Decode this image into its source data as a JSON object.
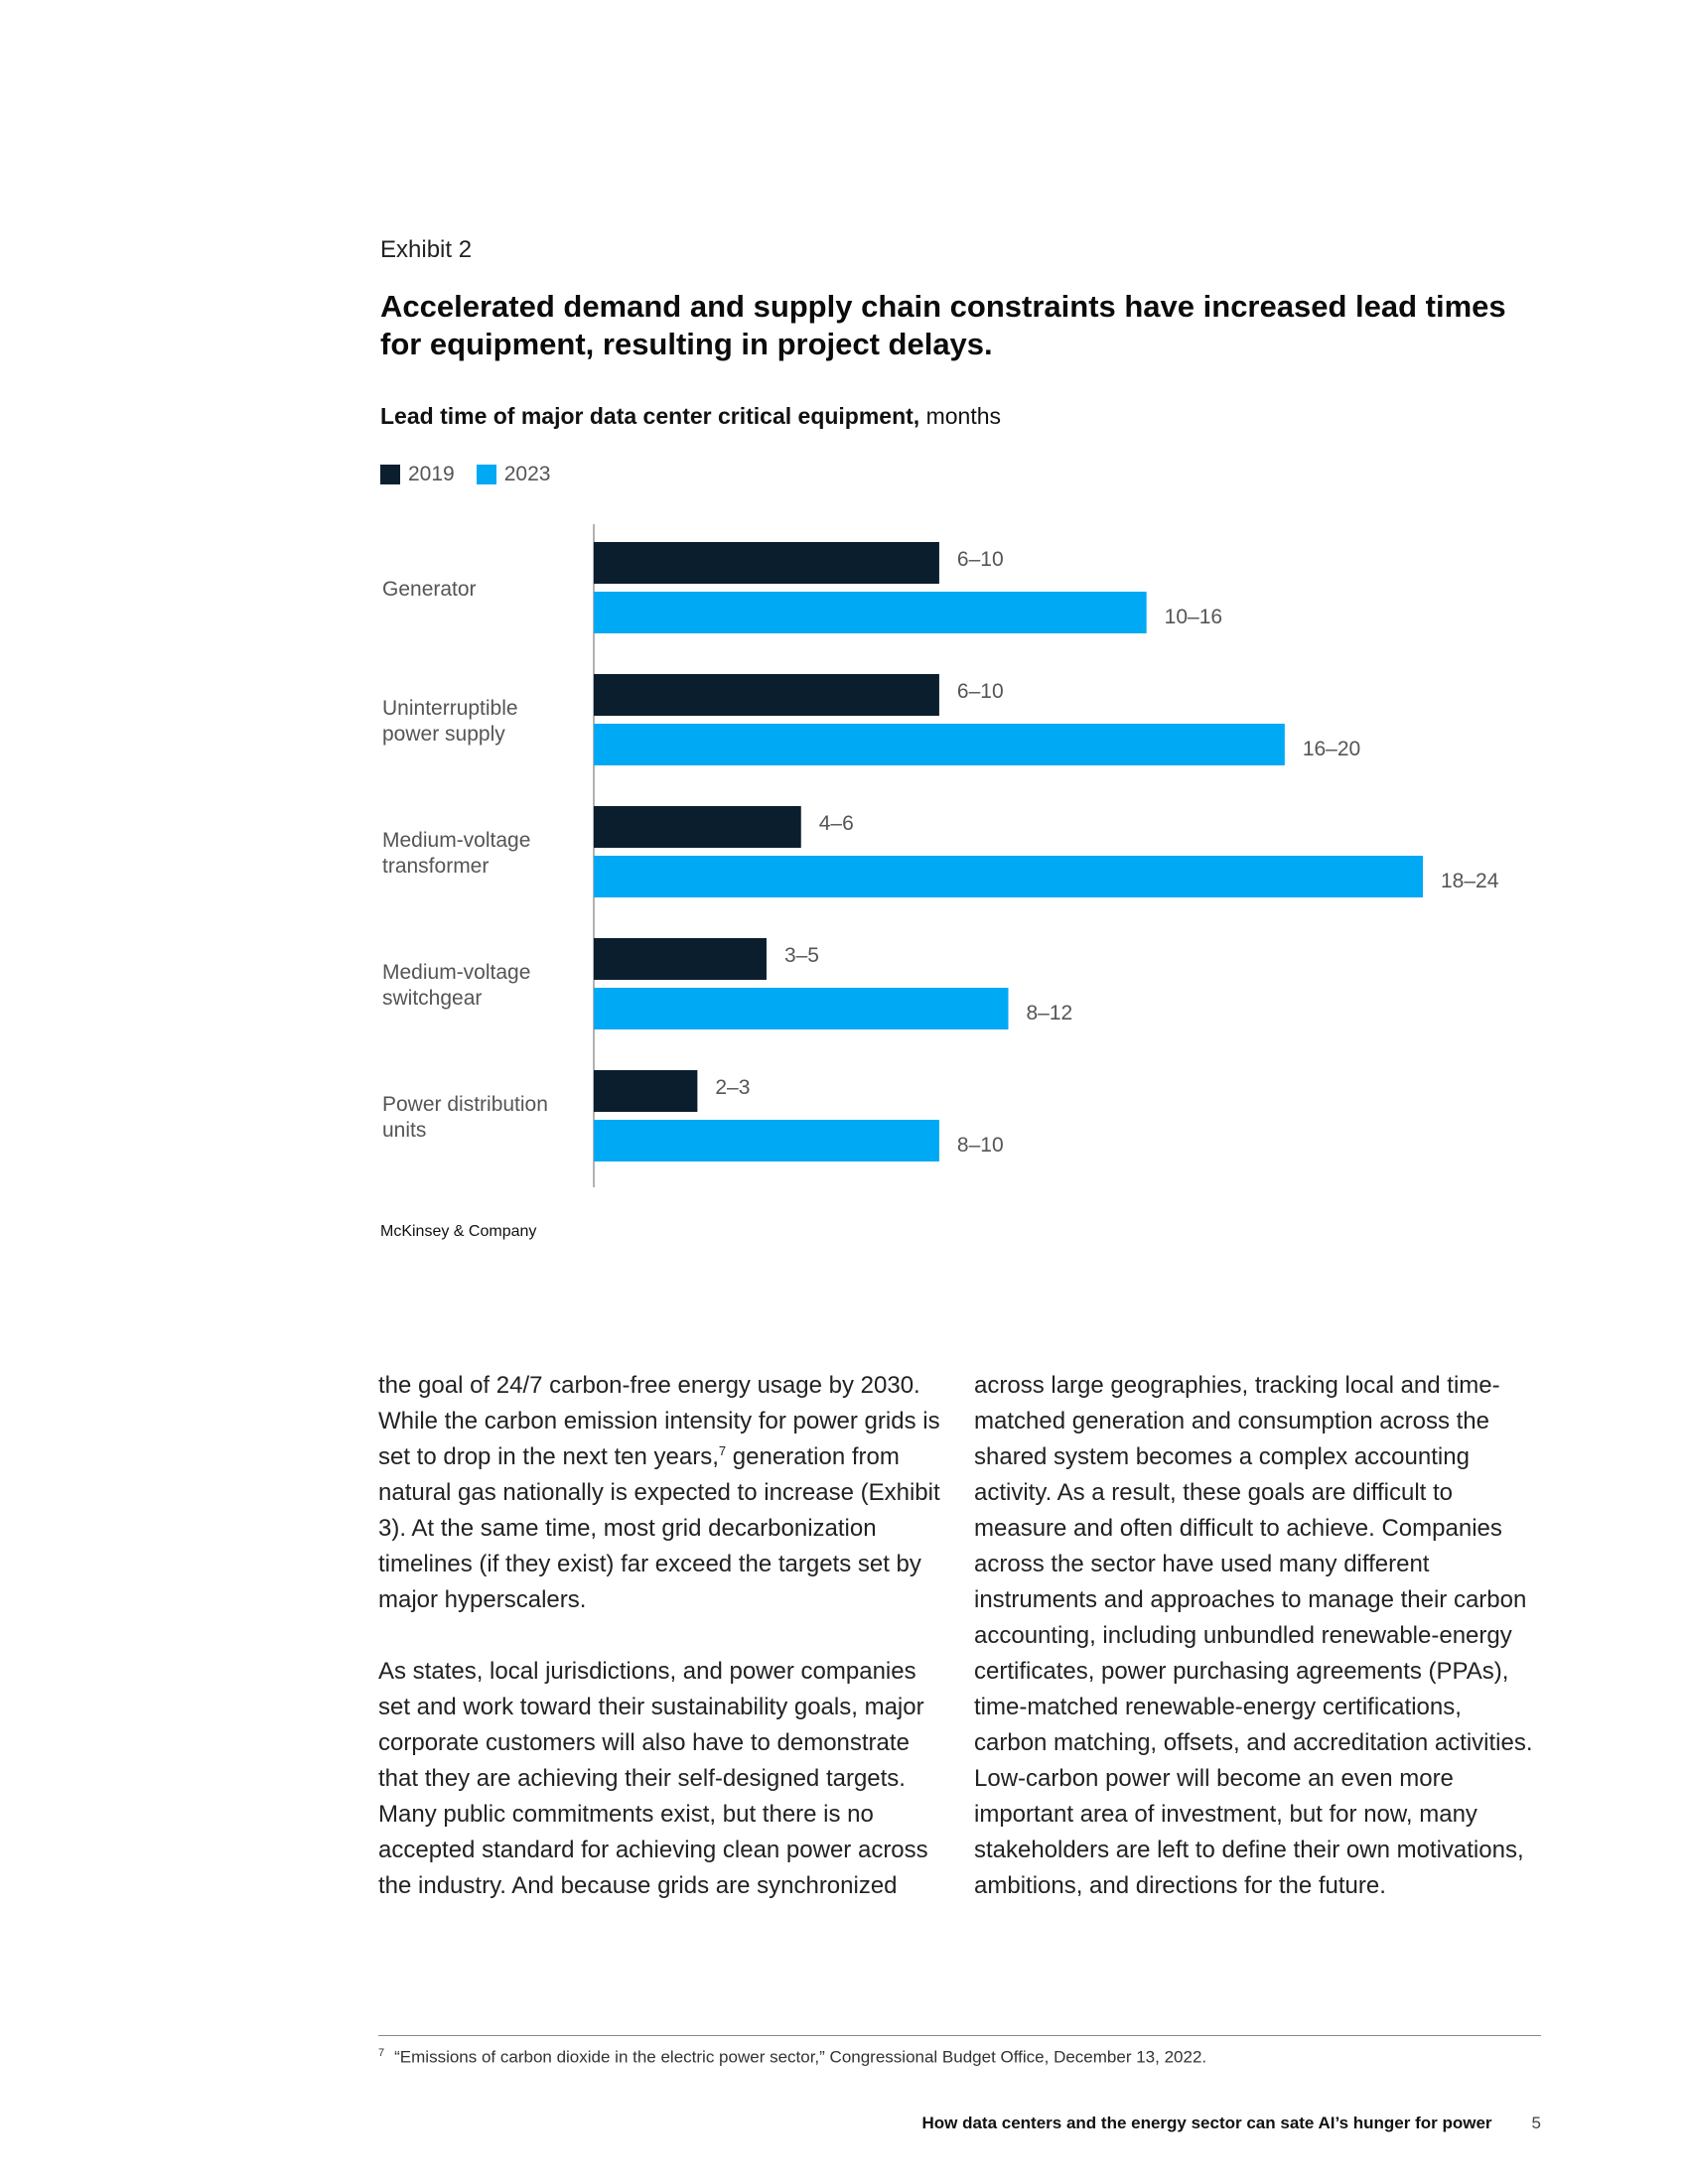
{
  "exhibit": {
    "label": "Exhibit 2",
    "title": "Accelerated demand and supply chain constraints have increased lead times for equipment, resulting in project delays.",
    "subtitle_bold": "Lead time of major data center critical equipment,",
    "subtitle_unit": "months",
    "source": "McKinsey & Company"
  },
  "colors": {
    "series_2019": "#0a1e2e",
    "series_2023": "#00a9f4",
    "label_text": "#555555"
  },
  "chart_data": {
    "type": "bar",
    "orientation": "horizontal",
    "categories": [
      [
        "Generator"
      ],
      [
        "Uninterruptible",
        "power supply"
      ],
      [
        "Medium-voltage",
        "transformer"
      ],
      [
        "Medium-voltage",
        "switchgear"
      ],
      [
        "Power distribution",
        "units"
      ]
    ],
    "series": [
      {
        "name": "2019",
        "values": [
          10,
          10,
          6,
          5,
          3
        ],
        "labels": [
          "6–10",
          "6–10",
          "4–6",
          "3–5",
          "2–3"
        ]
      },
      {
        "name": "2023",
        "values": [
          16,
          20,
          24,
          12,
          10
        ],
        "labels": [
          "10–16",
          "16–20",
          "18–24",
          "8–12",
          "8–10"
        ]
      }
    ],
    "xlim": [
      0,
      24
    ],
    "legend_position": "top-left",
    "grid": false
  },
  "body": {
    "left": [
      {
        "text": "the goal of 24/7 carbon-free energy usage by 2030. While the carbon emission intensity for power grids is set to drop in the next ten years,",
        "sup": "7",
        "tail": " generation from natural gas nationally is expected to increase (Exhibit 3). At the same time, most grid decarbonization timelines (if they exist) far exceed the targets set by major hyperscalers."
      },
      {
        "text": "As states, local jurisdictions, and power companies set and work toward their sustainability goals, major corporate customers will also have to demonstrate that they are achieving their self-designed targets. Many public commitments exist, but there is no accepted standard for achieving clean power across the industry. And because grids are synchronized"
      }
    ],
    "right": [
      {
        "text": "across large geographies, tracking local and time-matched generation and consumption across the shared system becomes a complex accounting activity. As a result, these goals are difficult to measure and often difficult to achieve. Companies across the sector have used many different instruments and approaches to manage their carbon accounting, including unbundled renewable-energy certificates, power purchasing agreements (PPAs), time-matched renewable-energy certifications, carbon matching, offsets, and accreditation activities. Low-carbon power will become an even more important area of investment, but for now, many stakeholders are left to define their own motivations, ambitions, and directions for the future."
      }
    ]
  },
  "footnote": {
    "number": "7",
    "text": "“Emissions of carbon dioxide in the electric power sector,” Congressional Budget Office, December 13, 2022."
  },
  "footer": {
    "running_title": "How data centers and the energy sector can sate AI’s hunger for power",
    "page_number": "5"
  }
}
